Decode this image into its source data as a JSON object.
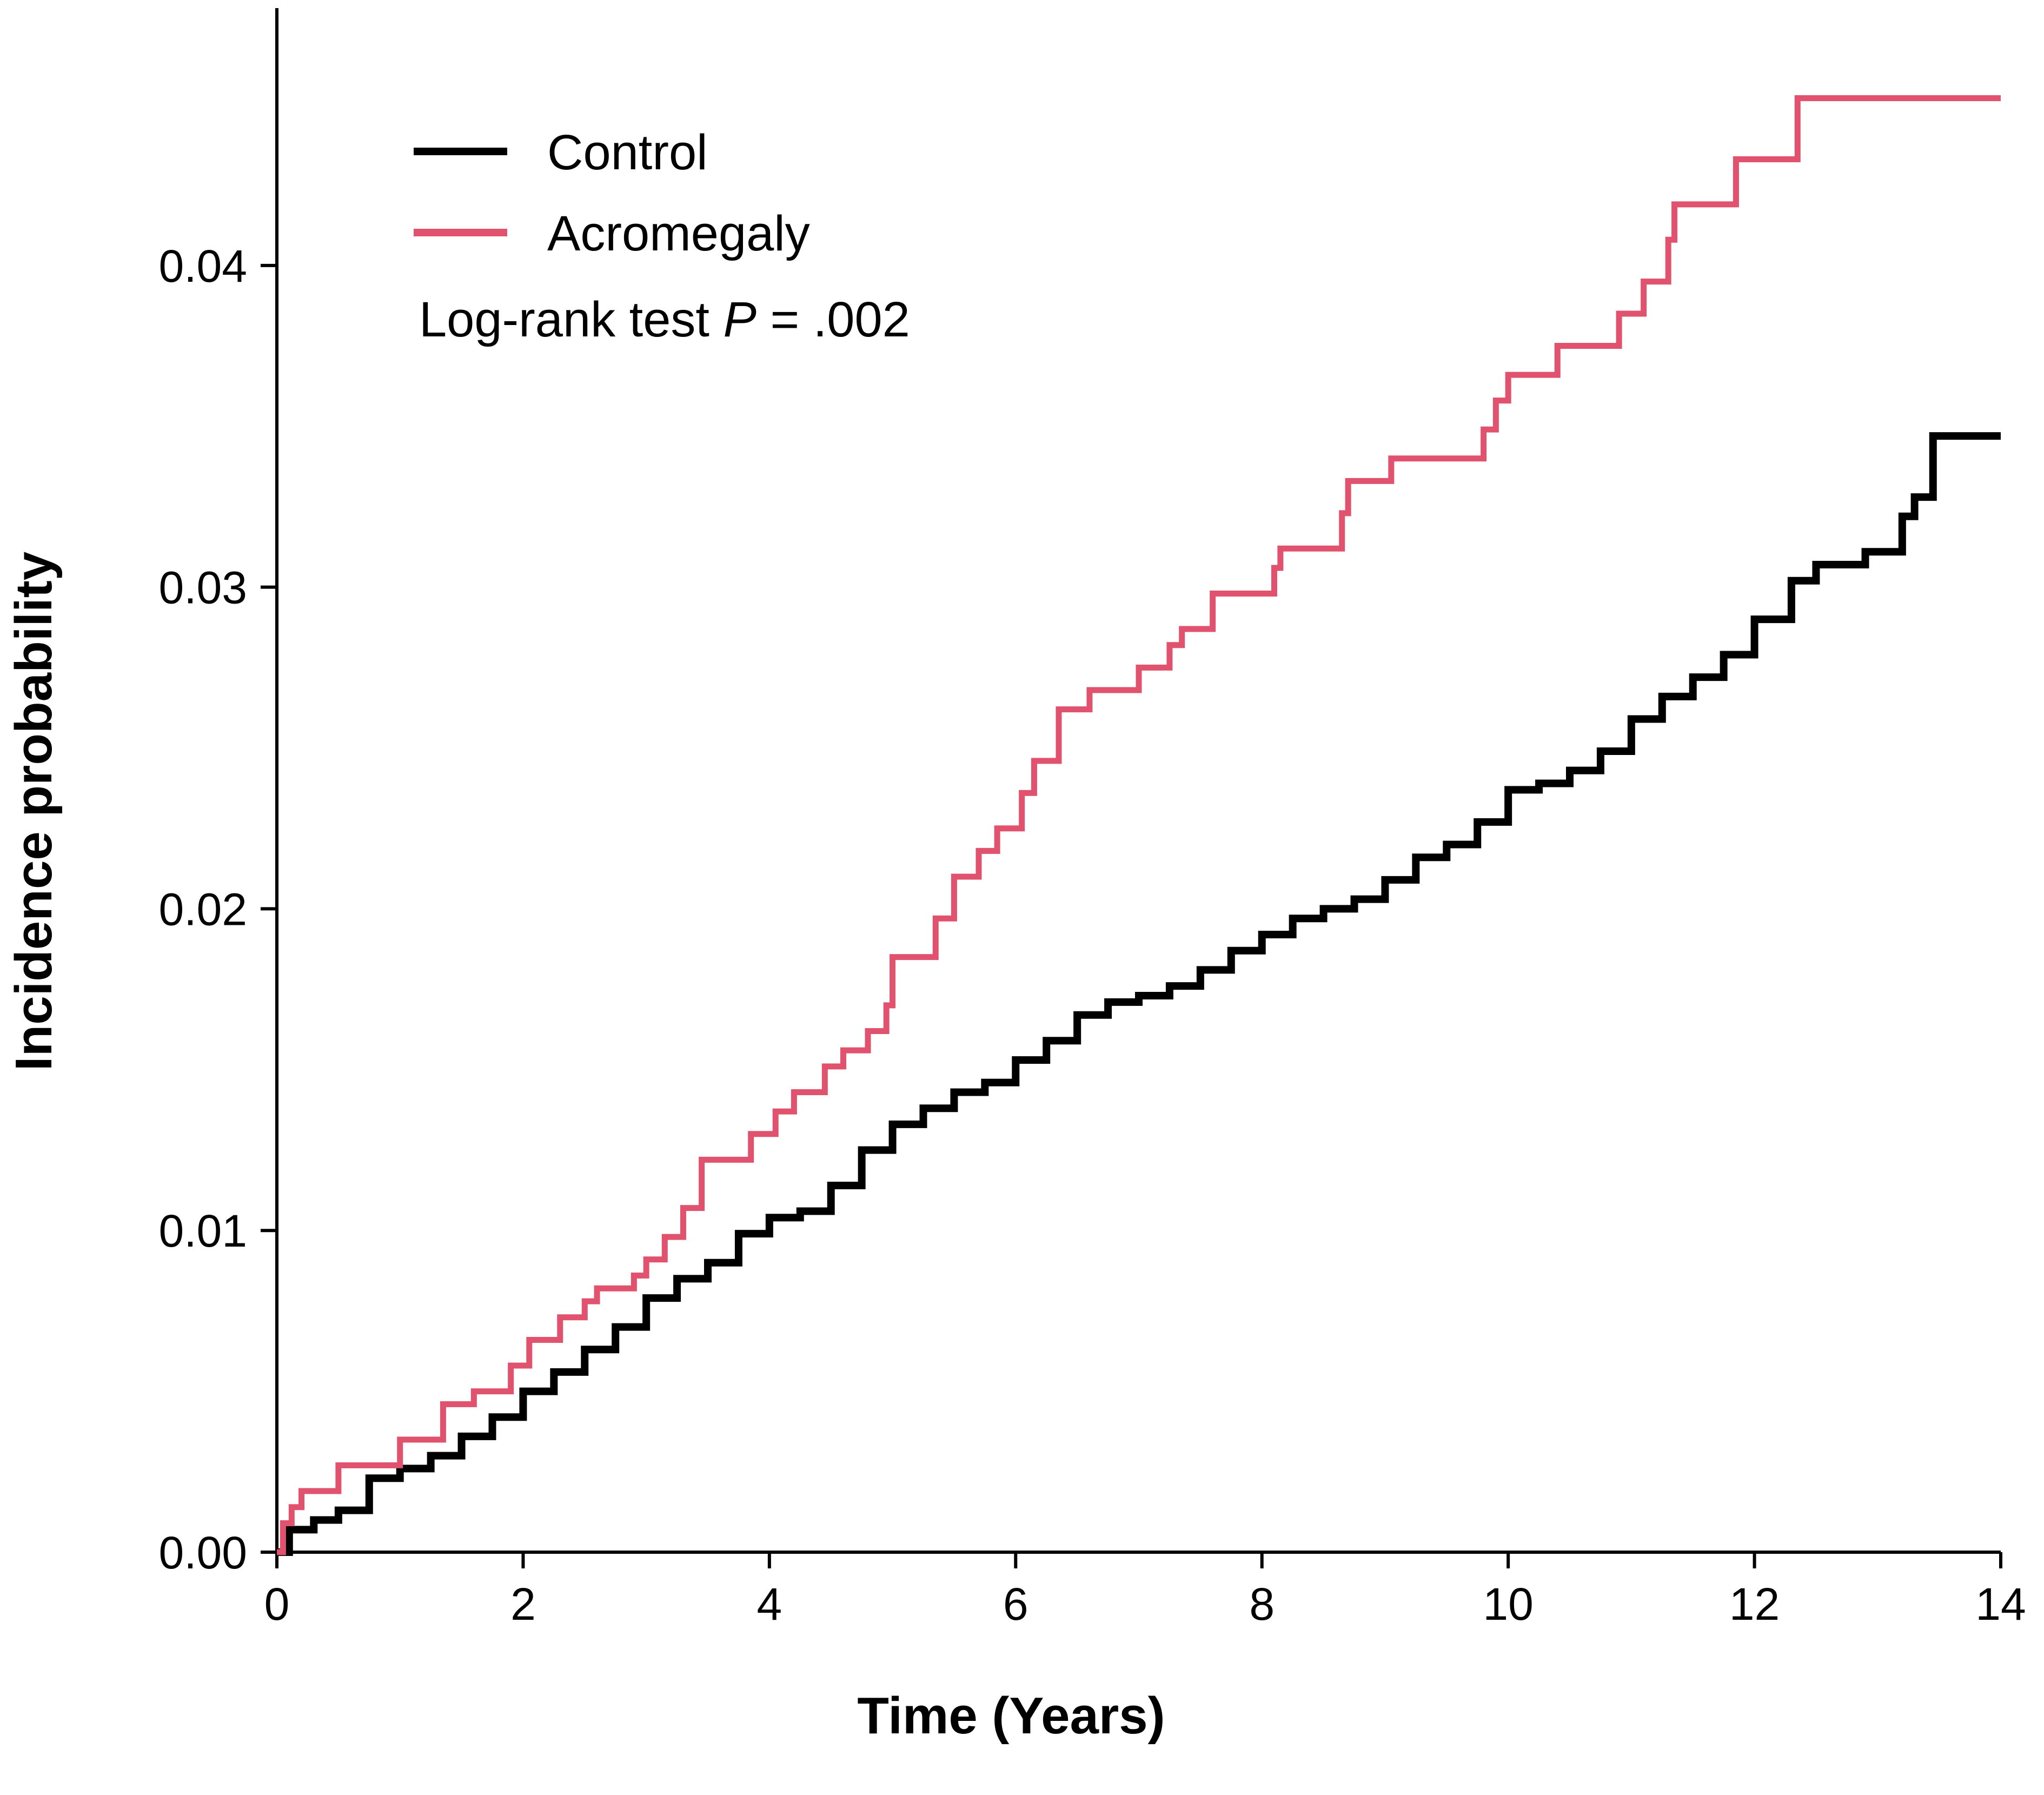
{
  "chart_data": {
    "type": "line",
    "title": "",
    "xlabel": "Time (Years)",
    "ylabel": "Incidence probability",
    "xlim": [
      0,
      14
    ],
    "ylim": [
      0,
      0.048
    ],
    "xticks": [
      0,
      2,
      4,
      6,
      8,
      10,
      12,
      14
    ],
    "xtick_labels": [
      "0",
      "2",
      "4",
      "6",
      "8",
      "10",
      "12",
      "14"
    ],
    "yticks": [
      0,
      0.01,
      0.02,
      0.03,
      0.04
    ],
    "ytick_labels": [
      "0.00",
      "0.01",
      "0.02",
      "0.03",
      "0.04"
    ],
    "legend_position": "top-left",
    "annotation": {
      "prefix": "Log-rank test ",
      "p_symbol": "P",
      "suffix": " = .002"
    },
    "series": [
      {
        "name": "Control",
        "color": "#000000",
        "step": true,
        "points": [
          [
            0,
            0
          ],
          [
            0.1,
            0.0007
          ],
          [
            0.3,
            0.001
          ],
          [
            0.5,
            0.0013
          ],
          [
            0.75,
            0.0023
          ],
          [
            1.0,
            0.0026
          ],
          [
            1.25,
            0.003
          ],
          [
            1.5,
            0.0036
          ],
          [
            1.75,
            0.0042
          ],
          [
            2.0,
            0.005
          ],
          [
            2.25,
            0.0056
          ],
          [
            2.5,
            0.0063
          ],
          [
            2.75,
            0.007
          ],
          [
            3.0,
            0.0079
          ],
          [
            3.25,
            0.0085
          ],
          [
            3.5,
            0.009
          ],
          [
            3.75,
            0.0099
          ],
          [
            4.0,
            0.0104
          ],
          [
            4.25,
            0.0106
          ],
          [
            4.5,
            0.0114
          ],
          [
            4.75,
            0.0125
          ],
          [
            5.0,
            0.0133
          ],
          [
            5.25,
            0.0138
          ],
          [
            5.5,
            0.0143
          ],
          [
            5.75,
            0.0146
          ],
          [
            6.0,
            0.0153
          ],
          [
            6.25,
            0.0159
          ],
          [
            6.5,
            0.0167
          ],
          [
            6.75,
            0.0171
          ],
          [
            7.0,
            0.0173
          ],
          [
            7.25,
            0.0176
          ],
          [
            7.5,
            0.0181
          ],
          [
            7.75,
            0.0187
          ],
          [
            8.0,
            0.0192
          ],
          [
            8.25,
            0.0197
          ],
          [
            8.5,
            0.02
          ],
          [
            8.75,
            0.0203
          ],
          [
            9.0,
            0.0209
          ],
          [
            9.25,
            0.0216
          ],
          [
            9.5,
            0.022
          ],
          [
            9.75,
            0.0227
          ],
          [
            10.0,
            0.0237
          ],
          [
            10.25,
            0.0239
          ],
          [
            10.5,
            0.0243
          ],
          [
            10.75,
            0.0249
          ],
          [
            11.0,
            0.0259
          ],
          [
            11.25,
            0.0266
          ],
          [
            11.5,
            0.0272
          ],
          [
            11.75,
            0.0279
          ],
          [
            12.0,
            0.029
          ],
          [
            12.3,
            0.0302
          ],
          [
            12.5,
            0.0307
          ],
          [
            12.9,
            0.0311
          ],
          [
            13.2,
            0.0322
          ],
          [
            13.3,
            0.0328
          ],
          [
            13.45,
            0.0347
          ],
          [
            14.0,
            0.0347
          ]
        ]
      },
      {
        "name": "Acromegaly",
        "color": "#E0526E",
        "step": true,
        "points": [
          [
            0,
            0
          ],
          [
            0.05,
            0.0009
          ],
          [
            0.12,
            0.0014
          ],
          [
            0.2,
            0.0019
          ],
          [
            0.5,
            0.0027
          ],
          [
            1.0,
            0.0035
          ],
          [
            1.35,
            0.0046
          ],
          [
            1.6,
            0.005
          ],
          [
            1.9,
            0.0058
          ],
          [
            2.05,
            0.0066
          ],
          [
            2.3,
            0.0073
          ],
          [
            2.5,
            0.0078
          ],
          [
            2.6,
            0.0082
          ],
          [
            2.9,
            0.0086
          ],
          [
            3.0,
            0.0091
          ],
          [
            3.15,
            0.0098
          ],
          [
            3.3,
            0.0107
          ],
          [
            3.45,
            0.0122
          ],
          [
            3.85,
            0.013
          ],
          [
            4.05,
            0.0137
          ],
          [
            4.2,
            0.0143
          ],
          [
            4.45,
            0.0151
          ],
          [
            4.6,
            0.0156
          ],
          [
            4.8,
            0.0162
          ],
          [
            4.95,
            0.017
          ],
          [
            5.0,
            0.0185
          ],
          [
            5.35,
            0.0197
          ],
          [
            5.5,
            0.021
          ],
          [
            5.7,
            0.0218
          ],
          [
            5.85,
            0.0225
          ],
          [
            6.05,
            0.0236
          ],
          [
            6.15,
            0.0246
          ],
          [
            6.35,
            0.0262
          ],
          [
            6.6,
            0.0268
          ],
          [
            7.0,
            0.0275
          ],
          [
            7.25,
            0.0282
          ],
          [
            7.35,
            0.0287
          ],
          [
            7.6,
            0.0298
          ],
          [
            8.1,
            0.0306
          ],
          [
            8.15,
            0.0312
          ],
          [
            8.65,
            0.0323
          ],
          [
            8.7,
            0.0333
          ],
          [
            9.05,
            0.034
          ],
          [
            9.8,
            0.0349
          ],
          [
            9.9,
            0.0358
          ],
          [
            10.0,
            0.0366
          ],
          [
            10.4,
            0.0375
          ],
          [
            10.9,
            0.0385
          ],
          [
            11.1,
            0.0395
          ],
          [
            11.3,
            0.0408
          ],
          [
            11.35,
            0.0419
          ],
          [
            11.85,
            0.0433
          ],
          [
            12.35,
            0.0452
          ],
          [
            14.0,
            0.0452
          ]
        ]
      }
    ]
  }
}
